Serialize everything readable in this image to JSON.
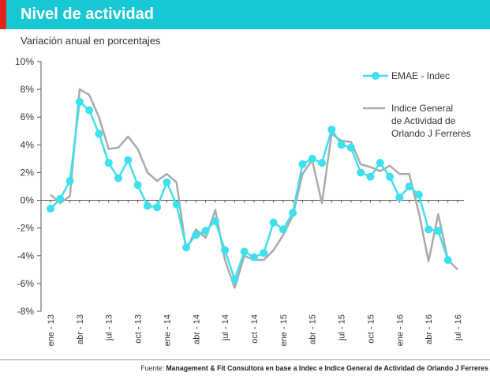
{
  "header": {
    "title": "Nivel de actividad",
    "accent_color": "#e2231a",
    "bar_color": "#17c7d4"
  },
  "footer": {
    "prefix": "Fuente:",
    "text": "Management & Fit Consultora en base a Indec e Indice General de Actividad de Orlando J Ferreres"
  },
  "chart_data": {
    "type": "line",
    "subtitle": "Variación anual en porcentajes",
    "ylim": [
      -8,
      10
    ],
    "yticks": [
      -8,
      -6,
      -4,
      -2,
      0,
      2,
      4,
      6,
      8,
      10
    ],
    "ytick_labels": [
      "-8%",
      "-6%",
      "-4%",
      "-2%",
      "0%",
      "2%",
      "4%",
      "6%",
      "8%",
      "10%"
    ],
    "x_count": 43,
    "xtick_labels": [
      {
        "i": 0,
        "label": "ene - 13"
      },
      {
        "i": 3,
        "label": "abr - 13"
      },
      {
        "i": 6,
        "label": "jul - 13"
      },
      {
        "i": 9,
        "label": "oct - 13"
      },
      {
        "i": 12,
        "label": "ene - 14"
      },
      {
        "i": 15,
        "label": "abr - 14"
      },
      {
        "i": 18,
        "label": "jul - 14"
      },
      {
        "i": 21,
        "label": "oct - 14"
      },
      {
        "i": 24,
        "label": "ene - 15"
      },
      {
        "i": 27,
        "label": "abr - 15"
      },
      {
        "i": 30,
        "label": "jul - 15"
      },
      {
        "i": 33,
        "label": "oct - 15"
      },
      {
        "i": 36,
        "label": "ene - 16"
      },
      {
        "i": 39,
        "label": "abr - 16"
      },
      {
        "i": 42,
        "label": "jul - 16"
      }
    ],
    "series": [
      {
        "name": "EMAE - Indec",
        "color": "#3ee0ee",
        "markers": true,
        "values": [
          -0.6,
          0.1,
          1.4,
          7.1,
          6.5,
          4.8,
          2.7,
          1.6,
          2.9,
          1.1,
          -0.4,
          -0.5,
          1.3,
          -0.3,
          -3.4,
          -2.5,
          -2.2,
          -1.5,
          -3.6,
          -5.7,
          -3.7,
          -4.1,
          -3.8,
          -1.6,
          -2.1,
          -0.9,
          2.6,
          3.0,
          2.7,
          5.1,
          4.0,
          3.8,
          2.0,
          1.7,
          2.7,
          1.7,
          0.2,
          1.0,
          0.4,
          -2.1,
          -2.2,
          -4.3,
          null
        ]
      },
      {
        "name": "Indice General de Actividad de Orlando J Ferreres",
        "legend_lines": [
          "Indice General",
          "de Actividad de",
          "Orlando J Ferreres"
        ],
        "color": "#aaaaaa",
        "markers": false,
        "values": [
          0.4,
          -0.2,
          0.3,
          8.0,
          7.6,
          6.0,
          3.7,
          3.8,
          4.6,
          3.7,
          2.0,
          1.4,
          1.9,
          1.3,
          -3.6,
          -2.1,
          -2.7,
          -0.7,
          -4.3,
          -6.3,
          -4.0,
          -4.3,
          -4.3,
          -3.6,
          -2.5,
          -1.1,
          1.9,
          2.9,
          -0.2,
          4.8,
          4.3,
          4.2,
          2.6,
          2.4,
          2.1,
          2.5,
          1.9,
          1.9,
          -0.9,
          -4.4,
          -1.0,
          -4.3,
          -5.0
        ]
      }
    ]
  }
}
